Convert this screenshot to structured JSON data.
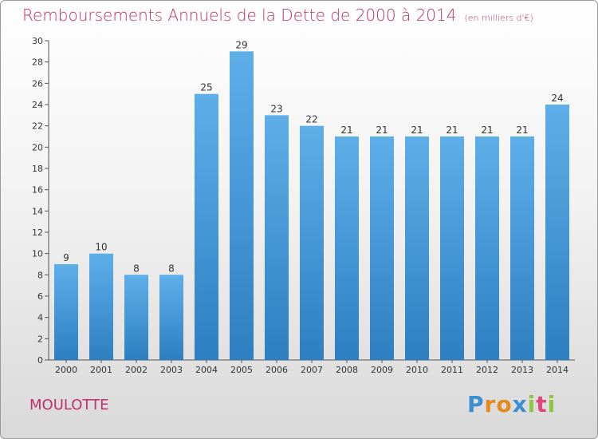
{
  "header": {
    "title": "Remboursements Annuels de la Dette de 2000 à 2014",
    "subtitle": "(en milliers d'€)"
  },
  "footer": {
    "commune": "MOULOTTE",
    "logo_text": "Proxiti",
    "logo_letters": [
      {
        "ch": "P",
        "color": "#3a8fd0"
      },
      {
        "ch": "r",
        "color": "#e58a1f"
      },
      {
        "ch": "o",
        "color": "#e58a1f"
      },
      {
        "ch": "x",
        "color": "#3a8fd0"
      },
      {
        "ch": "i",
        "color": "#8cc63f"
      },
      {
        "ch": "t",
        "color": "#e0457b"
      },
      {
        "ch": "i",
        "color": "#8cc63f"
      }
    ]
  },
  "chart_data": {
    "type": "bar",
    "title": "Remboursements Annuels de la Dette de 2000 à 2014",
    "xlabel": "",
    "ylabel": "",
    "categories": [
      "2000",
      "2001",
      "2002",
      "2003",
      "2004",
      "2005",
      "2006",
      "2007",
      "2008",
      "2009",
      "2010",
      "2011",
      "2012",
      "2013",
      "2014"
    ],
    "values": [
      9,
      10,
      8,
      8,
      25,
      29,
      23,
      22,
      21,
      21,
      21,
      21,
      21,
      21,
      24
    ],
    "ylim": [
      0,
      30
    ],
    "yticks": [
      0,
      2,
      4,
      6,
      8,
      10,
      12,
      14,
      16,
      18,
      20,
      22,
      24,
      26,
      28,
      30
    ],
    "grid": false,
    "colors": {
      "bar_light": "#5eaee8",
      "bar_dark": "#2d7fc1",
      "axis": "#555555"
    }
  }
}
